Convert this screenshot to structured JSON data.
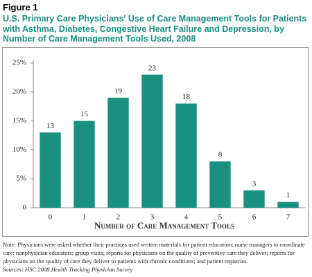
{
  "figure_label": "Figure 1",
  "chart_data": {
    "type": "bar",
    "title": "U.S. Primary Care Physicians' Use of Care Management Tools for Patients with Asthma, Diabetes, Congestive Heart Failure and Depression, by Number of Care Management Tools Used, 2008",
    "x_label": "Number of Care Management Tools",
    "categories": [
      "0",
      "1",
      "2",
      "3",
      "4",
      "5",
      "6",
      "7"
    ],
    "values": [
      13,
      15,
      19,
      23,
      18,
      8,
      3,
      1
    ],
    "color": "#1a9080",
    "ylim": [
      0,
      25
    ],
    "yticks": [
      0,
      {
        "value": 5,
        "label": "5%"
      },
      {
        "value": 10,
        "label": "10%"
      },
      {
        "value": 15,
        "label": "15%"
      },
      {
        "value": 20,
        "label": "20%"
      },
      {
        "value": 25,
        "label": "25%"
      }
    ],
    "grid": false
  },
  "note": "Note:  Physicians were asked whether their practices used written materials for patient education; nurse managers to coordinate care; nonphysician educators; group visits; reports for physicians on the quality of preventive care they deliver; reports for physicians on the quality of care they deliver to patients with chronic conditions; and patient registries.",
  "sources": "Sources: HSC 2008 Health Tracking Physician Survey"
}
